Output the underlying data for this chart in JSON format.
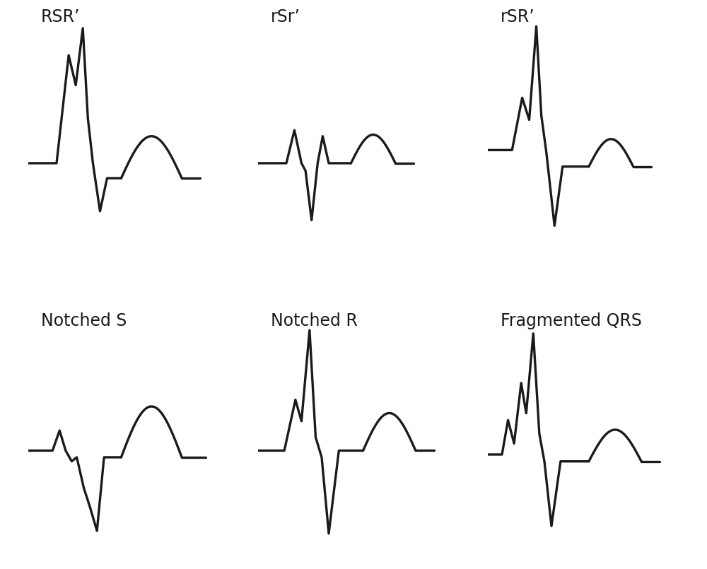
{
  "panels": [
    {
      "label": "RSR’",
      "row": 0,
      "col": 0,
      "type": "RSR_prime_large"
    },
    {
      "label": "rSr’",
      "row": 0,
      "col": 1,
      "type": "rSr_prime"
    },
    {
      "label": "rSR’",
      "row": 0,
      "col": 2,
      "type": "rSR_prime"
    },
    {
      "label": "Notched S",
      "row": 1,
      "col": 0,
      "type": "notched_S"
    },
    {
      "label": "Notched R",
      "row": 1,
      "col": 1,
      "type": "notched_R"
    },
    {
      "label": "Fragmented QRS",
      "row": 1,
      "col": 2,
      "type": "fragmented_QRS"
    }
  ],
  "line_width": 2.4,
  "line_color": "#1a1a1a",
  "bg_color": "#ffffff",
  "label_fontsize": 17
}
